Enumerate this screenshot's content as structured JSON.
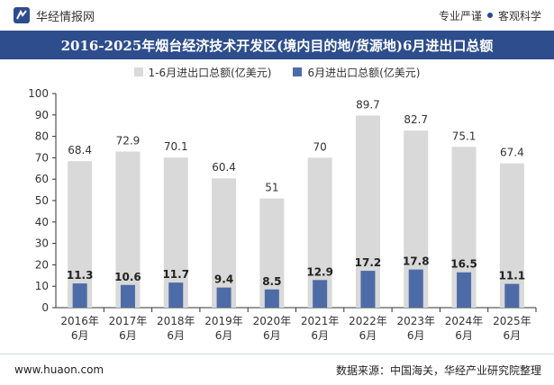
{
  "header": {
    "brand": "华经情报网",
    "slogan_1": "专业严谨",
    "slogan_2": "客观科学"
  },
  "chart_data": {
    "type": "bar",
    "title": "2016-2025年烟台经济技术开发区(境内目的地/货源地)6月进出口总额",
    "xlabel": "",
    "ylabel": "",
    "ylim": [
      0,
      100
    ],
    "yticks": [
      0,
      10,
      20,
      30,
      40,
      50,
      60,
      70,
      80,
      90,
      100
    ],
    "grid": false,
    "legend_position": "top-center",
    "categories": [
      "2016年\n6月",
      "2017年\n6月",
      "2018年\n6月",
      "2019年\n6月",
      "2020年\n6月",
      "2021年\n6月",
      "2022年\n6月",
      "2023年\n6月",
      "2024年\n6月",
      "2025年\n6月"
    ],
    "series": [
      {
        "name": "1-6月进出口总额(亿美元)",
        "color": "#d9d9d9",
        "values": [
          68.4,
          72.9,
          70.1,
          60.4,
          51,
          70,
          89.7,
          82.7,
          75.1,
          67.4
        ]
      },
      {
        "name": "6月进出口总额(亿美元)",
        "color": "#4d6ba6",
        "values": [
          11.3,
          10.6,
          11.7,
          9.4,
          8.5,
          12.9,
          17.2,
          17.8,
          16.5,
          11.1
        ]
      }
    ]
  },
  "footer": {
    "website": "www.huaon.com",
    "source": "数据来源：中国海关，华经产业研究院整理"
  }
}
